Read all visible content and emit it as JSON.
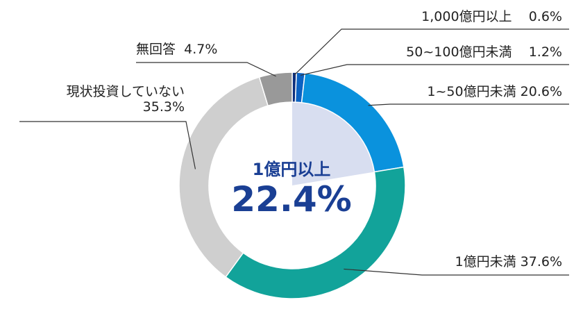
{
  "chart_data": {
    "type": "pie",
    "style": "donut",
    "center_label": "1億円以上",
    "center_value": "22.4%",
    "highlight_share": 22.4,
    "slices": [
      {
        "label": "1,000億円以上",
        "value": 0.6,
        "value_text": "0.6%",
        "color": "#0d2f7d"
      },
      {
        "label": "50~100億円未満",
        "value": 1.2,
        "value_text": "1.2%",
        "color": "#0b62c2"
      },
      {
        "label": "1~50億円未満",
        "value": 20.6,
        "value_text": "20.6%",
        "color": "#0a92dd"
      },
      {
        "label": "1億円未満",
        "value": 37.6,
        "value_text": "37.6%",
        "color": "#12a39a"
      },
      {
        "label": "現状投資していない",
        "value": 35.3,
        "value_text": "35.3%",
        "color": "#cfcfcf"
      },
      {
        "label": "無回答",
        "value": 4.7,
        "value_text": "4.7%",
        "color": "#999999"
      }
    ],
    "highlight_color": "#d8def0",
    "leader_color": "#333333"
  }
}
